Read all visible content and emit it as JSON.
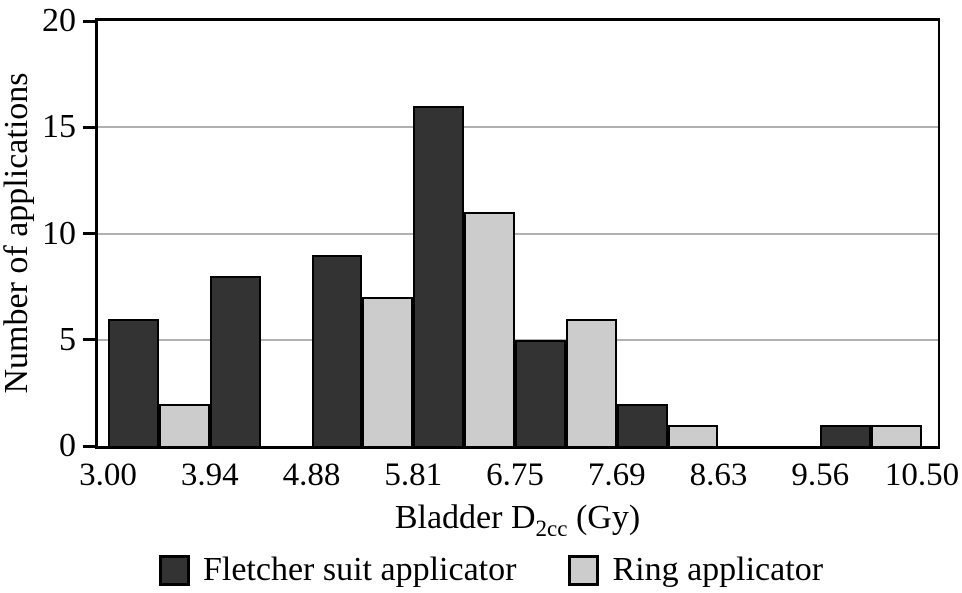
{
  "chart_data": {
    "type": "bar",
    "subtype": "grouped-histogram",
    "title": "",
    "ylabel": "Number of applications",
    "xlabel_plain": "Bladder D2cc (Gy)",
    "xlabel_parts": {
      "base": "Bladder D",
      "subscript": "2cc",
      "suffix": " (Gy)"
    },
    "x_tick_labels": [
      "3.00",
      "3.94",
      "4.88",
      "5.81",
      "6.75",
      "7.69",
      "8.63",
      "9.56",
      "10.50"
    ],
    "bin_edges_gy": [
      3.0,
      3.94,
      4.88,
      5.81,
      6.75,
      7.69,
      8.63,
      9.56,
      10.5
    ],
    "y_ticks": [
      {
        "value": 0,
        "label": "0"
      },
      {
        "value": 5,
        "label": "5"
      },
      {
        "value": 10,
        "label": "10"
      },
      {
        "value": 15,
        "label": "15"
      },
      {
        "value": 20,
        "label": "20"
      }
    ],
    "ylim": [
      0,
      20
    ],
    "gridlines_at": [
      5,
      10,
      15
    ],
    "grid": "horizontal",
    "legend_position": "bottom",
    "series": [
      {
        "name": "Fletcher suit applicator",
        "color": "#333333",
        "values": [
          6,
          8,
          9,
          16,
          5,
          2,
          0,
          1
        ]
      },
      {
        "name": "Ring applicator",
        "color": "#cccccc",
        "values": [
          2,
          0,
          7,
          11,
          6,
          1,
          0,
          1
        ]
      }
    ]
  },
  "colors": {
    "background": "#ffffff",
    "axis": "#000000",
    "bar_border": "#000000",
    "gridline": "#b0b0b0",
    "text": "#000000"
  }
}
